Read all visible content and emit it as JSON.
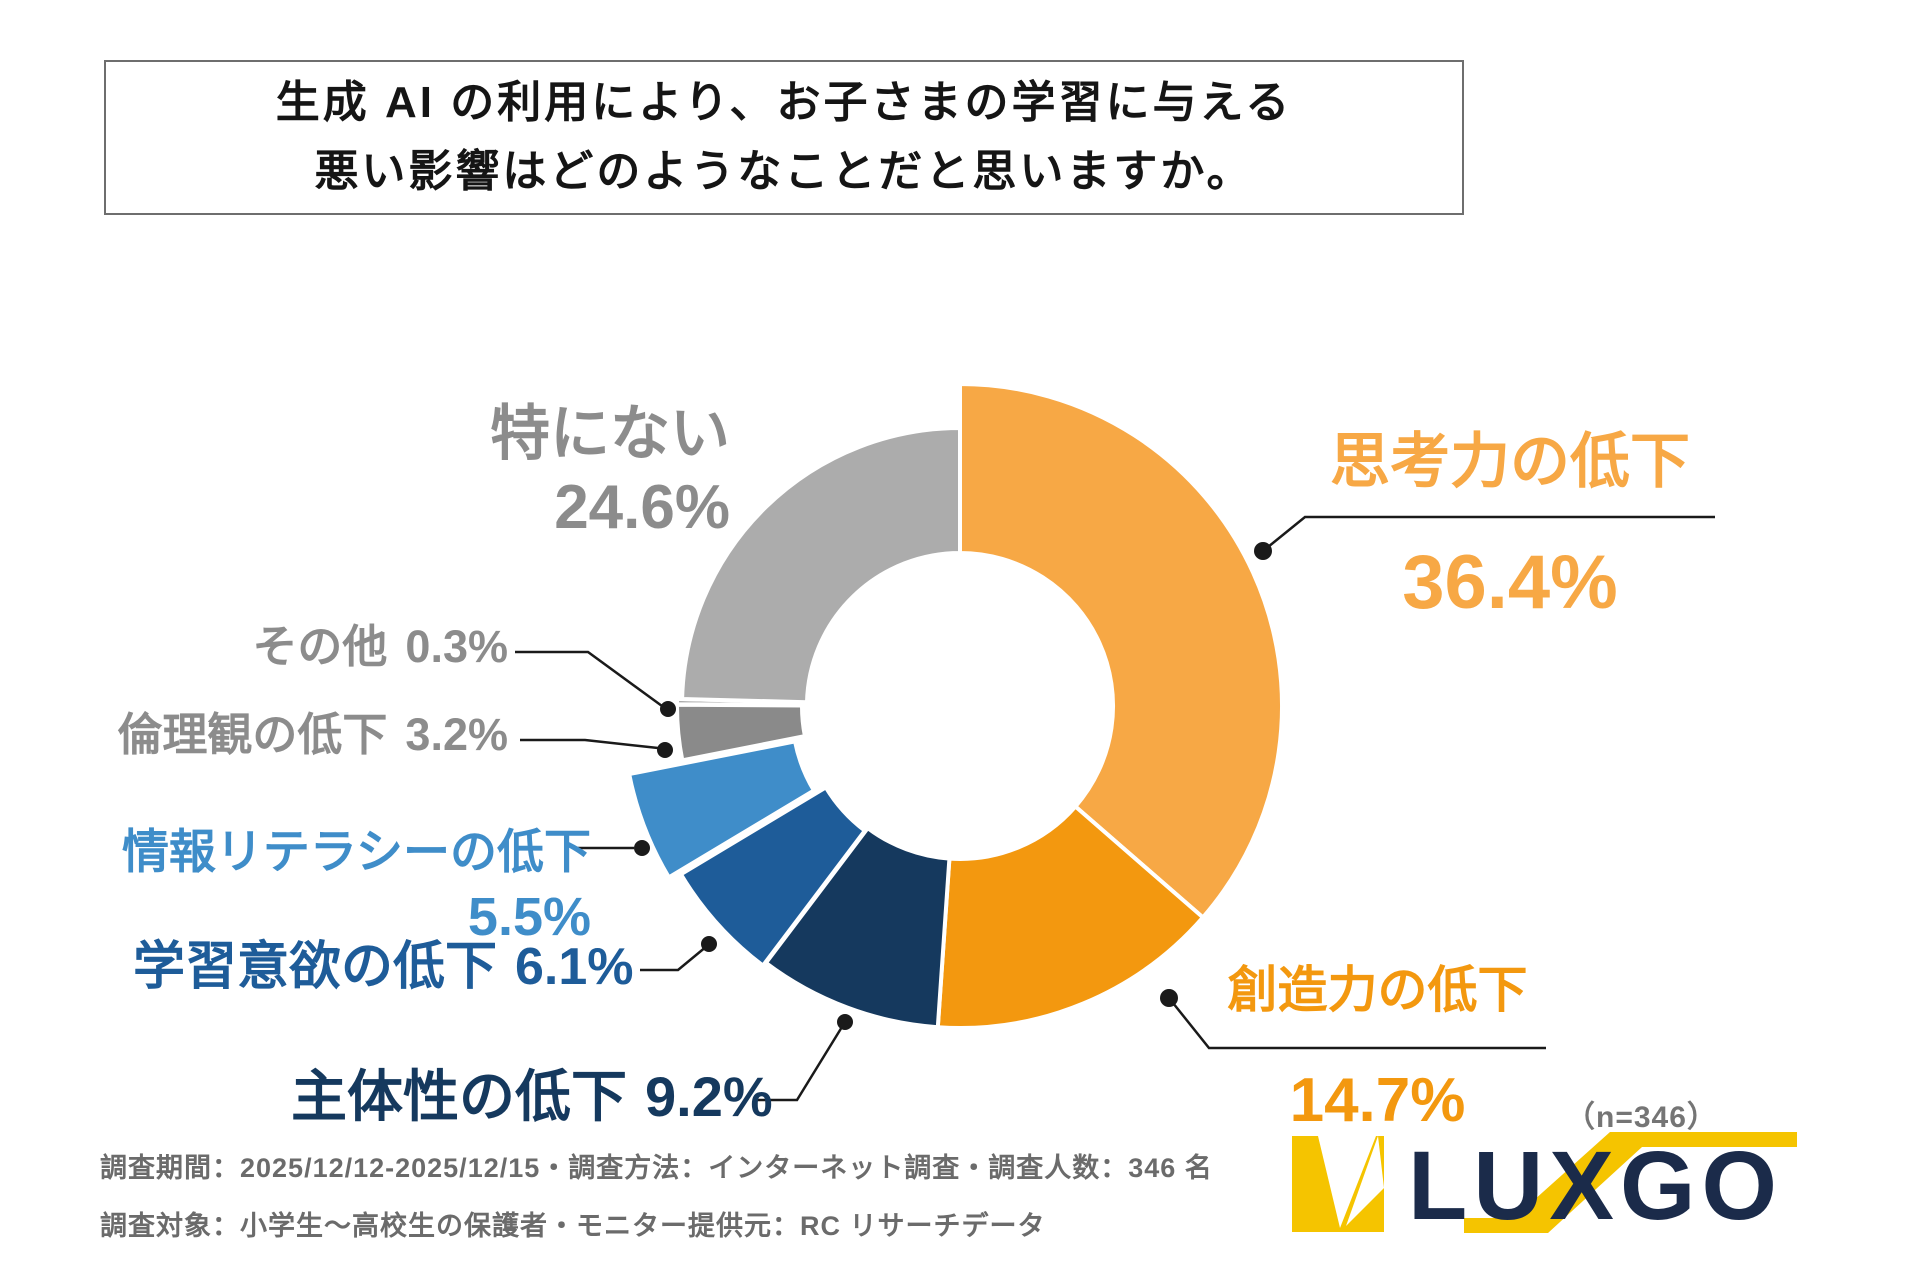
{
  "title": {
    "line1": "生成 AI の利用により、お子さまの学習に与える",
    "line2": "悪い影響はどのようなことだと思いますか。"
  },
  "chart_data": {
    "type": "pie",
    "title": "生成AIの利用により、お子さまの学習に与える悪い影響はどのようなことだと思いますか。",
    "n_note": "（n=346）",
    "start_angle_deg": 0,
    "direction": "clockwise",
    "slices": [
      {
        "label": "思考力の低下",
        "value": 36.4,
        "display": "36.4%",
        "color": "#F7A845"
      },
      {
        "label": "創造力の低下",
        "value": 14.7,
        "display": "14.7%",
        "color": "#F3980F"
      },
      {
        "label": "主体性の低下",
        "value": 9.2,
        "display": "9.2%",
        "color": "#15395E"
      },
      {
        "label": "学習意欲の低下",
        "value": 6.1,
        "display": "6.1%",
        "color": "#1E5C99"
      },
      {
        "label": "情報リテラシーの低下",
        "value": 5.5,
        "display": "5.5%",
        "color": "#3F8DC9"
      },
      {
        "label": "倫理観の低下",
        "value": 3.2,
        "display": "3.2%",
        "color": "#8A8A8A"
      },
      {
        "label": "その他",
        "value": 0.3,
        "display": "0.3%",
        "color": "#A9A9A9"
      },
      {
        "label": "特にない",
        "value": 24.6,
        "display": "24.6%",
        "color": "#ACACAC"
      }
    ]
  },
  "footer": {
    "line1": "調査期間：2025/12/12-2025/12/15・調査方法：インターネット調査・調査人数：346 名",
    "line2": "調査対象：小学生〜高校生の保護者・モニター提供元：RC リサーチデータ"
  },
  "logo": {
    "text": "LUXGO",
    "brand_navy": "#1B2B4A",
    "brand_yellow": "#F5C400"
  }
}
